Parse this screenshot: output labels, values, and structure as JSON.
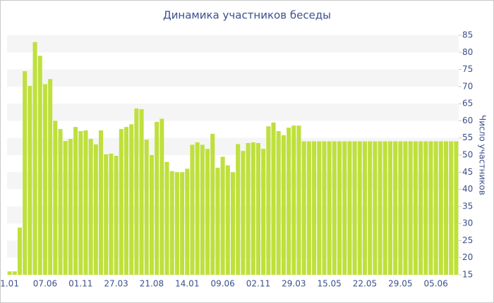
{
  "chart_data": {
    "type": "bar",
    "title": "Динамика участников беседы",
    "y_label": "Число участников",
    "color": "#bfe03c",
    "grid": "bands",
    "y_axis_side": "right",
    "categories": [
      "1.01",
      null,
      null,
      null,
      null,
      null,
      null,
      "07.06",
      null,
      null,
      null,
      null,
      null,
      null,
      "01.11",
      null,
      null,
      null,
      null,
      null,
      null,
      "27.03",
      null,
      null,
      null,
      null,
      null,
      null,
      "21.08",
      null,
      null,
      null,
      null,
      null,
      null,
      "14.01",
      null,
      null,
      null,
      null,
      null,
      null,
      "09.06",
      null,
      null,
      null,
      null,
      null,
      null,
      "02.11",
      null,
      null,
      null,
      null,
      null,
      null,
      "29.03",
      null,
      null,
      null,
      null,
      null,
      null,
      "15.05",
      null,
      null,
      null,
      null,
      null,
      null,
      "22.05",
      null,
      null,
      null,
      null,
      null,
      null,
      "29.05",
      null,
      null,
      null,
      null,
      null,
      null,
      "05.06",
      null,
      null,
      null,
      null
    ],
    "values": [
      16,
      16,
      28.8,
      74.5,
      70.2,
      83,
      79,
      70.7,
      72.2,
      60,
      57.6,
      54.1,
      54.7,
      58.2,
      57,
      57.2,
      54.7,
      53.1,
      57.2,
      50.2,
      50.4,
      49.8,
      57.6,
      58.2,
      59,
      63.6,
      63.4,
      54.5,
      50,
      59.7,
      60.6,
      48,
      45.3,
      45,
      45,
      46,
      53,
      53.7,
      53,
      51.8,
      56.2,
      46.3,
      49.5,
      47,
      45,
      53.2,
      51.2,
      53.5,
      53.7,
      53.5,
      51.8,
      58.4,
      59.5,
      57,
      55.8,
      58,
      58.6,
      58.6,
      54,
      54,
      54,
      54,
      54,
      54,
      54,
      54,
      54,
      54,
      54,
      54,
      54,
      54,
      54,
      54,
      54,
      54,
      54,
      54,
      54,
      54,
      54,
      54,
      54,
      54,
      54,
      54,
      54,
      54,
      54
    ],
    "ylim": [
      15,
      85
    ],
    "yticks": [
      15,
      20,
      25,
      30,
      35,
      40,
      45,
      50,
      55,
      60,
      65,
      70,
      75,
      80,
      85
    ]
  }
}
